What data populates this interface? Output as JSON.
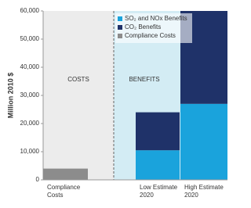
{
  "chart_data": {
    "type": "bar",
    "stacked": true,
    "y_label": "Million 2010 $",
    "annotations": [
      "COSTS",
      "BENEFITS"
    ],
    "categories": [
      "Compliance Costs",
      "Low Estimate 2020",
      "High Estimate 2020"
    ],
    "series": [
      {
        "name": "SO₂ and NOx Benefits",
        "color": "#1aa3dc",
        "values": [
          null,
          10500,
          27000
        ]
      },
      {
        "name": "CO₂ Benefits",
        "color": "#1f3269",
        "values": [
          null,
          13500,
          33000
        ]
      },
      {
        "name": "Compliance Costs",
        "color": "#8c8c8c",
        "values": [
          4000,
          null,
          null
        ]
      }
    ],
    "ylim": [
      0,
      60000
    ],
    "yticks": [
      0,
      {
        "value": 10000,
        "label": "10,000"
      },
      {
        "value": 20000,
        "label": "20,000"
      },
      {
        "value": 30000,
        "label": "30,000"
      },
      {
        "value": 40000,
        "label": "40,000"
      },
      {
        "value": 50000,
        "label": "50,000"
      },
      {
        "value": 60000,
        "label": "60,000"
      }
    ],
    "legend": "upper-left"
  }
}
